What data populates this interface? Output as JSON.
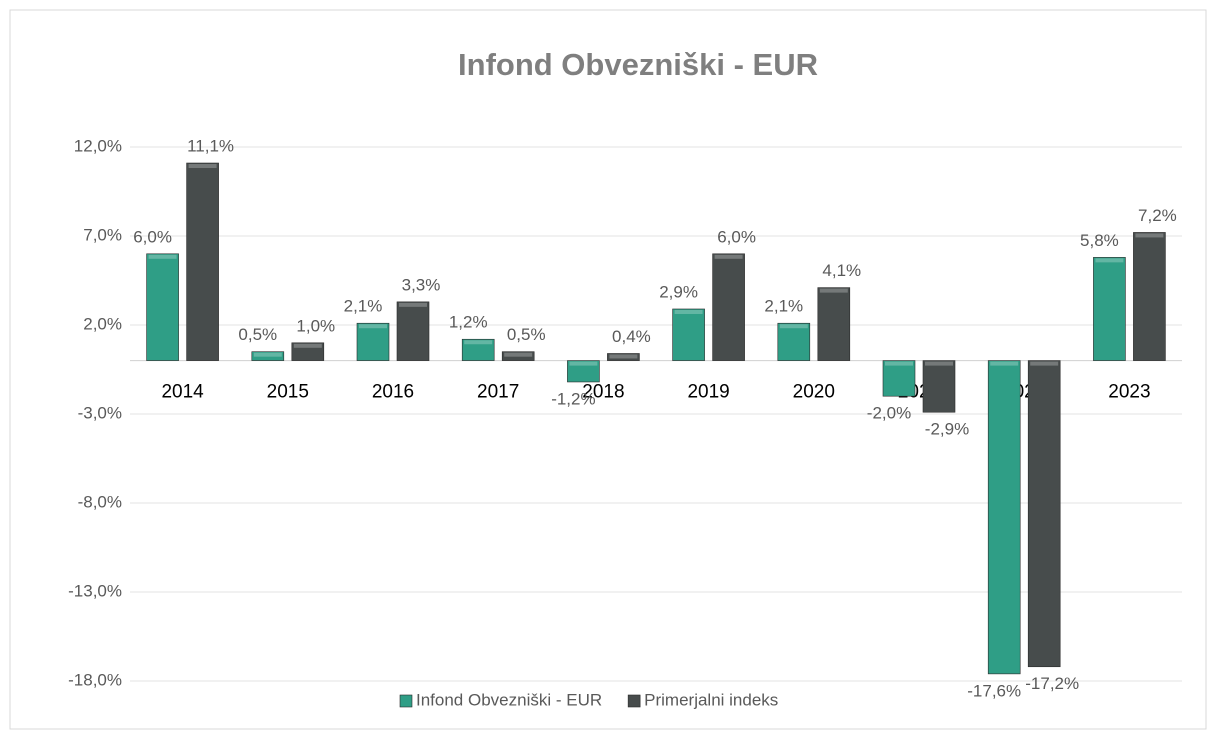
{
  "chart_data": {
    "type": "bar",
    "title": "Infond Obvezniški - EUR",
    "categories": [
      "2014",
      "2015",
      "2016",
      "2017",
      "2018",
      "2019",
      "2020",
      "2021",
      "2022",
      "2023"
    ],
    "series": [
      {
        "name": "Infond Obvezniški - EUR",
        "color": "#2f9e86",
        "values": [
          6.0,
          0.5,
          2.1,
          1.2,
          -1.2,
          2.9,
          2.1,
          -2.0,
          -17.6,
          5.8
        ],
        "value_labels": [
          "6,0%",
          "0,5%",
          "2,1%",
          "1,2%",
          "-1,2%",
          "2,9%",
          "2,1%",
          "-2,0%",
          "-17,6%",
          "5,8%"
        ]
      },
      {
        "name": "Primerjalni indeks",
        "color": "#474c4c",
        "values": [
          11.1,
          1.0,
          3.3,
          0.5,
          0.4,
          6.0,
          4.1,
          -2.9,
          -17.2,
          7.2
        ],
        "value_labels": [
          "11,1%",
          "1,0%",
          "3,3%",
          "0,5%",
          "0,4%",
          "6,0%",
          "4,1%",
          "-2,9%",
          "-17,2%",
          "7,2%"
        ]
      }
    ],
    "ylim": [
      -18,
      12
    ],
    "yticks": [
      {
        "value": -18,
        "label": "-18,0%"
      },
      {
        "value": -13,
        "label": "-13,0%"
      },
      {
        "value": -8,
        "label": "-8,0%"
      },
      {
        "value": -3,
        "label": "-3,0%"
      },
      {
        "value": 2,
        "label": "2,0%"
      },
      {
        "value": 7,
        "label": "7,0%"
      },
      {
        "value": 12,
        "label": "12,0%"
      }
    ],
    "grid": true,
    "legend": "bottom"
  }
}
